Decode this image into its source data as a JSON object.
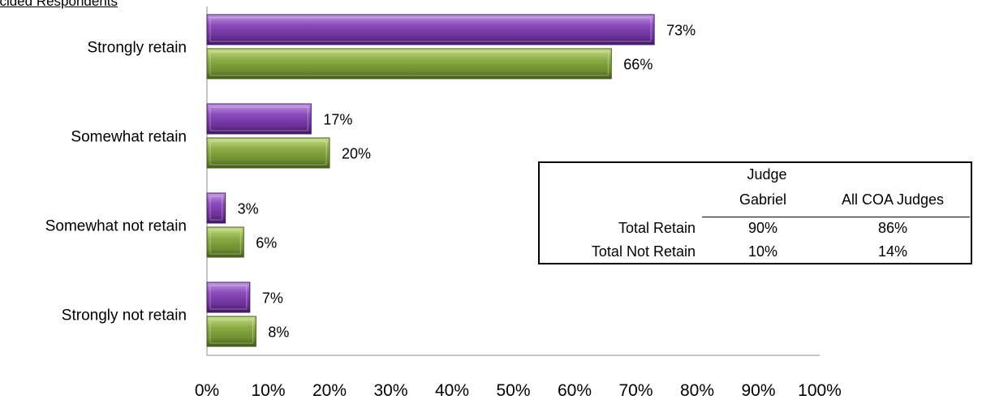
{
  "subtitle": "ecided Respondents",
  "chart_data": {
    "type": "bar",
    "orientation": "horizontal",
    "categories": [
      "Strongly retain",
      "Somewhat retain",
      "Somewhat not retain",
      "Strongly not retain"
    ],
    "series": [
      {
        "color": "#7a3aa8",
        "values": [
          73,
          17,
          3,
          7
        ]
      },
      {
        "color": "#7a9a3a",
        "values": [
          66,
          20,
          6,
          8
        ]
      }
    ],
    "data_labels": [
      [
        "73%",
        "17%",
        "3%",
        "7%"
      ],
      [
        "66%",
        "20%",
        "6%",
        "8%"
      ]
    ],
    "xlim": [
      0,
      100
    ],
    "x_ticks": [
      "0%",
      "10%",
      "20%",
      "30%",
      "40%",
      "50%",
      "60%",
      "70%",
      "80%",
      "90%",
      "100%"
    ],
    "grid": false
  },
  "summary_table": {
    "header_top": "Judge",
    "columns": [
      "Gabriel",
      "All COA Judges"
    ],
    "rows": [
      {
        "label": "Total Retain",
        "values": [
          "90%",
          "86%"
        ]
      },
      {
        "label": "Total Not Retain",
        "values": [
          "10%",
          "14%"
        ]
      }
    ]
  }
}
